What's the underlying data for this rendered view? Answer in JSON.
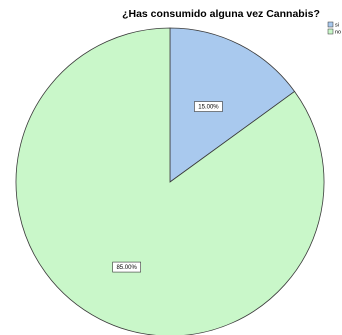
{
  "chart_data": {
    "type": "pie",
    "title": "¿Has consumido alguna vez Cannabis?",
    "categories": [
      "si",
      "no"
    ],
    "values": [
      15.0,
      85.0
    ],
    "data_labels": [
      "15.00%",
      "85.00%"
    ],
    "colors": [
      "#a9c9ee",
      "#c9f7c9"
    ],
    "start_angle_deg": 0,
    "direction": "clockwise",
    "legend_position": "top-right"
  }
}
